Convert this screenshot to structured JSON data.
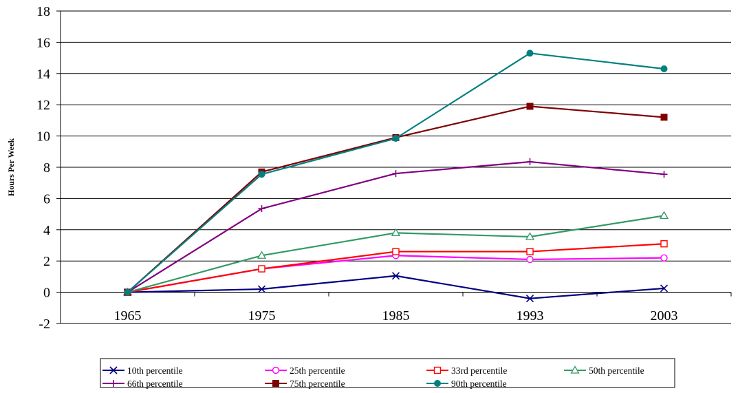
{
  "chart_data": {
    "type": "line",
    "title": "",
    "xlabel": "",
    "ylabel": "Hours Per Week",
    "categories": [
      "1965",
      "1975",
      "1985",
      "1993",
      "2003"
    ],
    "ylim": [
      -2,
      18
    ],
    "yticks": [
      -2,
      0,
      2,
      4,
      6,
      8,
      10,
      12,
      14,
      16,
      18
    ],
    "grid": "horizontal",
    "legend_position": "bottom",
    "series": [
      {
        "name": "10th percentile",
        "color": "#000080",
        "marker": "x",
        "values": [
          0,
          0.2,
          1.05,
          -0.4,
          0.25
        ]
      },
      {
        "name": "25th percentile",
        "color": "#ff00ff",
        "marker": "circle-open",
        "values": [
          0,
          1.5,
          2.35,
          2.1,
          2.2
        ]
      },
      {
        "name": "33rd percentile",
        "color": "#ff0000",
        "marker": "square-open",
        "values": [
          0,
          1.5,
          2.6,
          2.6,
          3.1
        ]
      },
      {
        "name": "50th percentile",
        "color": "#339966",
        "marker": "triangle-open",
        "values": [
          0,
          2.35,
          3.8,
          3.55,
          4.9
        ]
      },
      {
        "name": "66th percentile",
        "color": "#800080",
        "marker": "plus",
        "values": [
          0,
          5.35,
          7.6,
          8.35,
          7.55
        ]
      },
      {
        "name": "75th percentile",
        "color": "#800000",
        "marker": "square-filled",
        "values": [
          0,
          7.7,
          9.9,
          11.9,
          11.2
        ]
      },
      {
        "name": "90th percentile",
        "color": "#008080",
        "marker": "circle-filled",
        "values": [
          0,
          7.55,
          9.85,
          15.3,
          14.3
        ]
      }
    ]
  }
}
